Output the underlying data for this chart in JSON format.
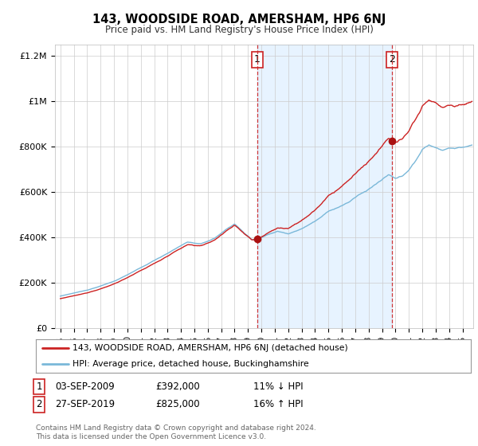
{
  "title": "143, WOODSIDE ROAD, AMERSHAM, HP6 6NJ",
  "subtitle": "Price paid vs. HM Land Registry's House Price Index (HPI)",
  "legend_line1": "143, WOODSIDE ROAD, AMERSHAM, HP6 6NJ (detached house)",
  "legend_line2": "HPI: Average price, detached house, Buckinghamshire",
  "transaction1_label": "1",
  "transaction1_date": "03-SEP-2009",
  "transaction1_price": "£392,000",
  "transaction1_note": "11% ↓ HPI",
  "transaction2_label": "2",
  "transaction2_date": "27-SEP-2019",
  "transaction2_price": "£825,000",
  "transaction2_note": "16% ↑ HPI",
  "footer": "Contains HM Land Registry data © Crown copyright and database right 2024.\nThis data is licensed under the Open Government Licence v3.0.",
  "hpi_color": "#7ab8d9",
  "price_color": "#cc2222",
  "vline_color": "#cc2222",
  "dot_color": "#aa1111",
  "shade_color": "#ddeeff",
  "background_color": "#ffffff",
  "ylim_min": 0,
  "ylim_max": 1250000,
  "yticks": [
    0,
    200000,
    400000,
    600000,
    800000,
    1000000,
    1200000
  ],
  "ytick_labels": [
    "£0",
    "£200K",
    "£400K",
    "£600K",
    "£800K",
    "£1M",
    "£1.2M"
  ],
  "vline1_x": 2009.67,
  "vline2_x": 2019.74,
  "dot1_x": 2009.67,
  "dot1_y": 392000,
  "dot2_x": 2019.74,
  "dot2_y": 825000,
  "xmin": 1994.6,
  "xmax": 2025.8
}
